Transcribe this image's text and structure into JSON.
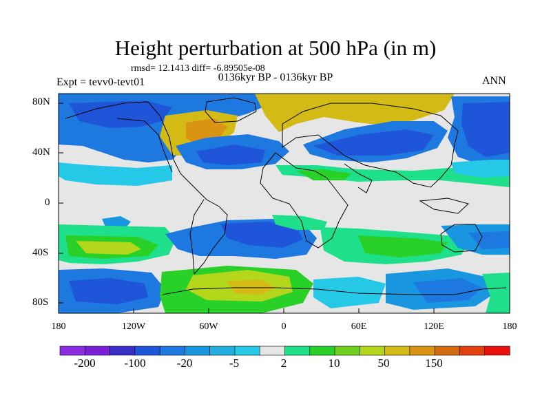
{
  "header": {
    "title": "Height perturbation at 500 hPa (in m)",
    "stats": "rmsd= 12.1413 diff= -6.89505e-08",
    "subtitle": "0136kyr BP - 0136kyr BP",
    "experiment": "Expt = tevv0-tevt01",
    "season": "ANN"
  },
  "axes": {
    "lat_labels": [
      "80N",
      "40N",
      "0",
      "40S",
      "80S"
    ],
    "lon_labels": [
      "180",
      "120W",
      "60W",
      "0",
      "60E",
      "120E",
      "180"
    ]
  },
  "colorbar": {
    "labels": [
      "-200",
      "-100",
      "-20",
      "-5",
      "2",
      "10",
      "50",
      "150"
    ],
    "colors": [
      "#8a2be2",
      "#7a1fd6",
      "#3a2fc8",
      "#1f55d8",
      "#1d78e0",
      "#1896e0",
      "#22b0e0",
      "#25c8e6",
      "#e6e6e6",
      "#1fe08a",
      "#28d028",
      "#70d020",
      "#b4d71c",
      "#d4ba14",
      "#d89412",
      "#d46a10",
      "#e2400e",
      "#e80f0e"
    ]
  },
  "map": {
    "colors": {
      "background": "#e6e6e6",
      "blue_dark": "#1f55d8",
      "blue": "#1d78e0",
      "blue_light": "#1896e0",
      "cyan": "#25c8e6",
      "green_light": "#1fe08a",
      "green": "#28d028",
      "yellow_green": "#b4d71c",
      "gold": "#d4ba14",
      "orange": "#d89412",
      "coastline": "#000000"
    }
  }
}
